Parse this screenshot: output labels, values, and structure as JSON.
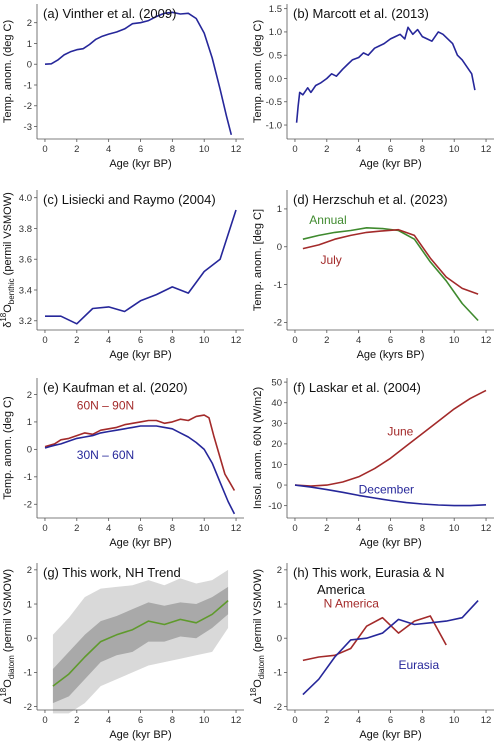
{
  "colors": {
    "navy": "#26279a",
    "red": "#a32a2a",
    "green": "#3f8a2e",
    "olive": "#5f9a2c",
    "band_outer": "#d9d9d9",
    "band_inner": "#a9a9a9"
  },
  "chart_data": [
    {
      "id": "a",
      "type": "line",
      "title": "(a)        Vinther et al. (2009)",
      "xlabel": "Age (kyr BP)",
      "ylabel": "Temp. anom. (deg C)",
      "xlim": [
        -0.5,
        12.5
      ],
      "ylim": [
        -3.6,
        2.9
      ],
      "xticks": [
        0,
        2,
        4,
        6,
        8,
        10,
        12
      ],
      "yticks": [
        -3,
        -2,
        -1,
        0,
        1,
        2
      ],
      "series": [
        {
          "color": "navy",
          "x": [
            0,
            0.4,
            0.8,
            1.2,
            1.6,
            2.0,
            2.4,
            2.8,
            3.2,
            3.6,
            4.0,
            4.5,
            5.0,
            5.5,
            6.0,
            6.5,
            7.0,
            7.5,
            8.0,
            8.5,
            9.0,
            9.5,
            10.0,
            10.5,
            11.0,
            11.4,
            11.7
          ],
          "y": [
            0,
            0.02,
            0.2,
            0.45,
            0.6,
            0.7,
            0.75,
            0.95,
            1.2,
            1.35,
            1.45,
            1.55,
            1.7,
            1.95,
            2.0,
            2.1,
            2.3,
            2.45,
            2.5,
            2.42,
            2.45,
            2.2,
            1.5,
            0.3,
            -1.2,
            -2.5,
            -3.4
          ]
        }
      ],
      "annotations": []
    },
    {
      "id": "b",
      "type": "line",
      "title": "(b)        Marcott et al. (2013)",
      "xlabel": "Age (kyr BP)",
      "ylabel": "Temp. anom. (deg C)",
      "xlim": [
        -0.5,
        12.5
      ],
      "ylim": [
        -1.3,
        1.6
      ],
      "xticks": [
        0,
        2,
        4,
        6,
        8,
        10,
        12
      ],
      "yticks": [
        -1.0,
        -0.5,
        0.0,
        0.5,
        1.0,
        1.5
      ],
      "series": [
        {
          "color": "navy",
          "x": [
            0.1,
            0.2,
            0.3,
            0.5,
            0.8,
            1.0,
            1.3,
            1.6,
            2.0,
            2.3,
            2.6,
            3.0,
            3.3,
            3.6,
            4.0,
            4.3,
            4.6,
            5.0,
            5.3,
            5.6,
            6.0,
            6.3,
            6.6,
            6.9,
            7.1,
            7.4,
            7.7,
            8.0,
            8.3,
            8.6,
            9.0,
            9.3,
            9.6,
            9.9,
            10.2,
            10.5,
            10.8,
            11.1,
            11.3
          ],
          "y": [
            -0.95,
            -0.6,
            -0.3,
            -0.35,
            -0.2,
            -0.3,
            -0.15,
            -0.1,
            0.0,
            0.1,
            0.05,
            0.2,
            0.3,
            0.4,
            0.45,
            0.55,
            0.5,
            0.65,
            0.7,
            0.75,
            0.85,
            0.9,
            0.95,
            0.85,
            1.1,
            0.95,
            1.05,
            0.9,
            0.85,
            0.8,
            1.0,
            0.95,
            0.85,
            0.75,
            0.5,
            0.4,
            0.25,
            0.1,
            -0.25
          ]
        }
      ],
      "annotations": []
    },
    {
      "id": "c",
      "type": "line",
      "title": "(c)   Lisiecki and Raymo (2004)",
      "xlabel": "Age (kyr BP)",
      "ylabel": "δ18Obenthic (permil VSMOW)",
      "ylabel_parts": [
        "δ",
        "18",
        "O",
        "benthic",
        "  (permil VSMOW)"
      ],
      "xlim": [
        -0.5,
        12.5
      ],
      "ylim": [
        3.14,
        4.05
      ],
      "xticks": [
        0,
        2,
        4,
        6,
        8,
        10,
        12
      ],
      "yticks": [
        3.2,
        3.4,
        3.6,
        3.8,
        4.0
      ],
      "series": [
        {
          "color": "navy",
          "x": [
            0,
            1,
            2,
            3,
            4,
            5,
            6,
            7,
            8,
            9,
            10,
            11,
            12
          ],
          "y": [
            3.23,
            3.23,
            3.18,
            3.28,
            3.29,
            3.26,
            3.33,
            3.37,
            3.42,
            3.38,
            3.52,
            3.6,
            3.92
          ]
        }
      ],
      "annotations": []
    },
    {
      "id": "d",
      "type": "line",
      "title": "(d)   Herzschuh et al. (2023)",
      "xlabel": "Age (kyrs BP)",
      "ylabel": "Temp. anom. [deg C]",
      "xlim": [
        -0.5,
        12.5
      ],
      "ylim": [
        -2.2,
        1.5
      ],
      "xticks": [
        0,
        2,
        4,
        6,
        8,
        10,
        12
      ],
      "yticks": [
        -2,
        -1,
        0,
        1
      ],
      "series": [
        {
          "name": "Annual",
          "color": "green",
          "x": [
            0.5,
            1.5,
            2.5,
            3.5,
            4.5,
            5.5,
            6.5,
            7.5,
            8.5,
            9.5,
            10.5,
            11.5
          ],
          "y": [
            0.2,
            0.3,
            0.38,
            0.43,
            0.5,
            0.48,
            0.43,
            0.2,
            -0.4,
            -0.9,
            -1.5,
            -1.95
          ]
        },
        {
          "name": "July",
          "color": "red",
          "x": [
            0.5,
            1.5,
            2.5,
            3.5,
            4.5,
            5.5,
            6.5,
            7.5,
            8.5,
            9.5,
            10.5,
            11.5
          ],
          "y": [
            -0.05,
            0.05,
            0.2,
            0.3,
            0.38,
            0.42,
            0.45,
            0.3,
            -0.3,
            -0.8,
            -1.1,
            -1.25
          ]
        }
      ],
      "annotations": [
        {
          "text": "Annual",
          "color": "green",
          "x": 0.9,
          "y": 0.6
        },
        {
          "text": "July",
          "color": "red",
          "x": 1.6,
          "y": -0.45
        }
      ]
    },
    {
      "id": "e",
      "type": "line",
      "title": "(e)     Kaufman et al. (2020)",
      "xlabel": "Age (kyr BP)",
      "ylabel": "Temp. anom. (deg C)",
      "xlim": [
        -0.5,
        12.5
      ],
      "ylim": [
        -2.5,
        2.6
      ],
      "xticks": [
        0,
        2,
        4,
        6,
        8,
        10,
        12
      ],
      "yticks": [
        -2,
        -1,
        0,
        1,
        2
      ],
      "series": [
        {
          "name": "60N – 90N",
          "color": "red",
          "x": [
            0,
            0.3,
            0.6,
            1.0,
            1.5,
            2.0,
            2.5,
            3.0,
            3.5,
            4.0,
            4.5,
            5.0,
            5.5,
            6.0,
            6.5,
            7.0,
            7.5,
            8.0,
            8.5,
            9.0,
            9.5,
            10.0,
            10.3,
            10.6,
            11.0,
            11.3,
            11.6,
            11.9
          ],
          "y": [
            0.1,
            0.15,
            0.2,
            0.35,
            0.4,
            0.5,
            0.6,
            0.55,
            0.7,
            0.75,
            0.8,
            0.9,
            0.95,
            1.0,
            1.05,
            1.05,
            0.95,
            1.0,
            1.1,
            1.05,
            1.2,
            1.25,
            1.15,
            0.5,
            -0.3,
            -0.9,
            -1.2,
            -1.5
          ]
        },
        {
          "name": "30N – 60N",
          "color": "navy",
          "x": [
            0,
            0.3,
            0.6,
            1.0,
            1.5,
            2.0,
            2.5,
            3.0,
            3.5,
            4.0,
            4.5,
            5.0,
            5.5,
            6.0,
            6.5,
            7.0,
            7.5,
            8.0,
            8.5,
            9.0,
            9.5,
            10.0,
            10.5,
            11.0,
            11.5,
            11.9
          ],
          "y": [
            0.05,
            0.1,
            0.15,
            0.2,
            0.3,
            0.4,
            0.45,
            0.5,
            0.6,
            0.65,
            0.7,
            0.75,
            0.8,
            0.85,
            0.85,
            0.85,
            0.8,
            0.75,
            0.6,
            0.45,
            0.25,
            0.0,
            -0.5,
            -1.2,
            -1.9,
            -2.35
          ]
        }
      ],
      "annotations": [
        {
          "text": "60N – 90N",
          "color": "red",
          "x": 2.0,
          "y": 1.45
        },
        {
          "text": "30N – 60N",
          "color": "navy",
          "x": 2.0,
          "y": -0.35
        }
      ]
    },
    {
      "id": "f",
      "type": "line",
      "title": "(f)       Laskar et al. (2004)",
      "xlabel": "Age (kyr BP)",
      "ylabel": "Insol. anom. 60N (W/m2)",
      "xlim": [
        -0.5,
        12.5
      ],
      "ylim": [
        -16,
        52
      ],
      "xticks": [
        0,
        2,
        4,
        6,
        8,
        10,
        12
      ],
      "yticks": [
        -10,
        0,
        10,
        20,
        30,
        40,
        50
      ],
      "series": [
        {
          "name": "June",
          "color": "red",
          "x": [
            0,
            1,
            2,
            3,
            4,
            5,
            6,
            7,
            8,
            9,
            10,
            11,
            12
          ],
          "y": [
            0,
            -0.5,
            0,
            1.5,
            4,
            8,
            13,
            19,
            25,
            31,
            37,
            42,
            46
          ]
        },
        {
          "name": "December",
          "color": "navy",
          "x": [
            0,
            1,
            2,
            3,
            4,
            5,
            6,
            7,
            8,
            9,
            10,
            11,
            12
          ],
          "y": [
            0,
            -1,
            -2.2,
            -3.5,
            -5,
            -6.3,
            -7.5,
            -8.5,
            -9.2,
            -9.7,
            -10,
            -10,
            -9.6
          ]
        }
      ],
      "annotations": [
        {
          "text": "June",
          "color": "red",
          "x": 5.8,
          "y": 24
        },
        {
          "text": "December",
          "color": "navy",
          "x": 4.0,
          "y": -4
        }
      ]
    },
    {
      "id": "g",
      "type": "area",
      "title": "(g)     This work, NH Trend",
      "xlabel": "Age (kyr BP)",
      "ylabel": "Δ18Odiatom (permil VSMOW)",
      "ylabel_parts": [
        "Δ",
        "18",
        "O",
        "diatom",
        "  (permil VSMOW)"
      ],
      "xlim": [
        -0.5,
        12.5
      ],
      "ylim": [
        -2.1,
        2.2
      ],
      "xticks": [
        0,
        2,
        4,
        6,
        8,
        10,
        12
      ],
      "yticks": [
        -2,
        -1,
        0,
        1,
        2
      ],
      "bands": [
        {
          "color": "band_outer",
          "x": [
            0.5,
            1.5,
            2.5,
            3.5,
            4.5,
            5.5,
            6.5,
            7.5,
            8.5,
            9.5,
            10.5,
            11.5
          ],
          "upper": [
            0.1,
            0.6,
            1.2,
            1.45,
            1.5,
            1.55,
            1.7,
            1.55,
            1.75,
            1.6,
            1.7,
            2.0
          ],
          "lower": [
            -2.2,
            -2.2,
            -1.9,
            -1.4,
            -1.2,
            -1.0,
            -0.8,
            -0.7,
            -0.6,
            -0.5,
            -0.4,
            0.3
          ]
        },
        {
          "color": "band_inner",
          "x": [
            0.5,
            1.5,
            2.5,
            3.5,
            4.5,
            5.5,
            6.5,
            7.5,
            8.5,
            9.5,
            10.5,
            11.5
          ],
          "upper": [
            -0.9,
            -0.4,
            0.1,
            0.5,
            0.65,
            0.85,
            1.05,
            0.95,
            1.05,
            1.0,
            1.2,
            1.5
          ],
          "lower": [
            -1.9,
            -1.7,
            -1.2,
            -0.7,
            -0.5,
            -0.4,
            -0.1,
            -0.1,
            0.05,
            0.0,
            0.3,
            0.7
          ]
        }
      ],
      "series": [
        {
          "color": "olive",
          "x": [
            0.5,
            1.5,
            2.5,
            3.5,
            4.5,
            5.5,
            6.5,
            7.5,
            8.5,
            9.5,
            10.5,
            11.5
          ],
          "y": [
            -1.4,
            -1.05,
            -0.55,
            -0.1,
            0.1,
            0.25,
            0.5,
            0.4,
            0.55,
            0.45,
            0.7,
            1.1
          ]
        }
      ],
      "annotations": []
    },
    {
      "id": "h",
      "type": "line",
      "title": "(h)  This work, Eurasia & N",
      "title2": "America",
      "xlabel": "Age (kyr BP)",
      "ylabel": "Δ18Odiatom (permil VSMOW)",
      "ylabel_parts": [
        "Δ",
        "18",
        "O",
        "diatom",
        "  (permil VSMOW)"
      ],
      "xlim": [
        -0.5,
        12.5
      ],
      "ylim": [
        -2.1,
        2.2
      ],
      "xticks": [
        0,
        2,
        4,
        6,
        8,
        10,
        12
      ],
      "yticks": [
        -2,
        -1,
        0,
        1,
        2
      ],
      "series": [
        {
          "name": "N America",
          "color": "red",
          "x": [
            0.5,
            1.5,
            2.5,
            3.5,
            4.5,
            5.5,
            6.5,
            7.5,
            8.5,
            9.5
          ],
          "y": [
            -0.65,
            -0.55,
            -0.5,
            -0.3,
            0.35,
            0.6,
            0.15,
            0.5,
            0.65,
            -0.2
          ]
        },
        {
          "name": "Eurasia",
          "color": "navy",
          "x": [
            0.5,
            1.5,
            2.5,
            3.5,
            4.5,
            5.5,
            6.5,
            7.5,
            8.5,
            9.5,
            10.5,
            11.5
          ],
          "y": [
            -1.65,
            -1.2,
            -0.55,
            -0.05,
            0.0,
            0.15,
            0.55,
            0.4,
            0.45,
            0.5,
            0.6,
            1.1
          ]
        }
      ],
      "annotations": [
        {
          "text": "N America",
          "color": "red",
          "x": 1.8,
          "y": 0.9
        },
        {
          "text": "Eurasia",
          "color": "navy",
          "x": 6.5,
          "y": -0.9
        }
      ]
    }
  ]
}
